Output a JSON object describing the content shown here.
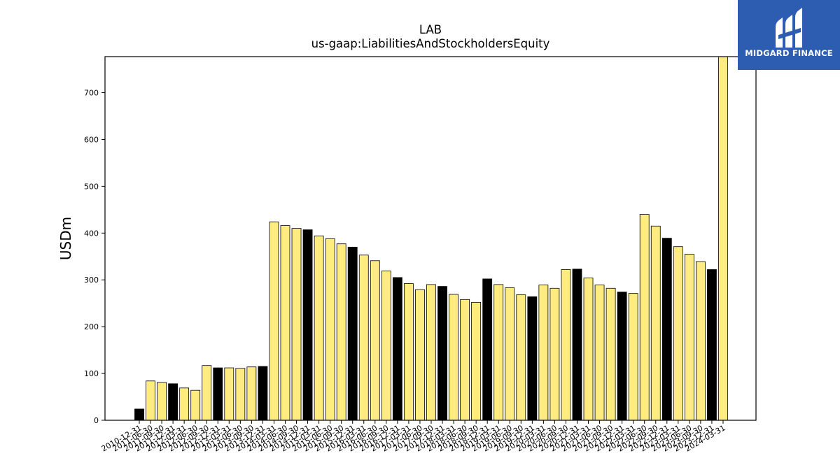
{
  "chart_data": {
    "type": "bar",
    "title": "LAB",
    "subtitle": "us-gaap:LiabilitiesAndStockholdersEquity",
    "xlabel": "",
    "ylabel": "USDm",
    "ylim": [
      0,
      777
    ],
    "yticks": [
      0,
      100,
      200,
      300,
      400,
      500,
      600,
      700
    ],
    "colors": {
      "annual": "#000000",
      "quarterly": "#ffec80",
      "edge": "#000000"
    },
    "categories": [
      "2010-12-31",
      "2011-06-30",
      "2011-09-30",
      "2011-12-31",
      "2012-03-31",
      "2012-06-30",
      "2012-09-30",
      "2012-12-31",
      "2013-03-31",
      "2013-06-30",
      "2013-09-30",
      "2013-12-31",
      "2014-03-31",
      "2014-06-30",
      "2014-09-30",
      "2014-12-31",
      "2015-03-31",
      "2015-06-30",
      "2015-09-30",
      "2015-12-31",
      "2016-03-31",
      "2016-06-30",
      "2016-09-30",
      "2016-12-31",
      "2017-03-31",
      "2017-06-30",
      "2017-09-30",
      "2017-12-31",
      "2018-03-31",
      "2018-06-30",
      "2018-09-30",
      "2018-12-31",
      "2019-03-31",
      "2019-06-30",
      "2019-09-30",
      "2019-12-31",
      "2020-03-31",
      "2020-06-30",
      "2020-09-30",
      "2020-12-31",
      "2021-03-31",
      "2021-06-30",
      "2021-09-30",
      "2021-12-31",
      "2022-03-31",
      "2022-06-30",
      "2022-09-30",
      "2022-12-31",
      "2023-03-31",
      "2023-06-30",
      "2023-09-30",
      "2023-12-31",
      "2024-03-31"
    ],
    "values": [
      24,
      84,
      81,
      78,
      69,
      64,
      117,
      112,
      112,
      111,
      114,
      115,
      424,
      416,
      410,
      407,
      394,
      388,
      377,
      370,
      353,
      341,
      319,
      305,
      292,
      279,
      290,
      286,
      269,
      258,
      252,
      302,
      290,
      283,
      268,
      264,
      289,
      282,
      322,
      323,
      304,
      289,
      282,
      274,
      271,
      440,
      415,
      389,
      371,
      355,
      339,
      322,
      777
    ],
    "bar_type": [
      "annual",
      "quarterly",
      "quarterly",
      "annual",
      "quarterly",
      "quarterly",
      "quarterly",
      "annual",
      "quarterly",
      "quarterly",
      "quarterly",
      "annual",
      "quarterly",
      "quarterly",
      "quarterly",
      "annual",
      "quarterly",
      "quarterly",
      "quarterly",
      "annual",
      "quarterly",
      "quarterly",
      "quarterly",
      "annual",
      "quarterly",
      "quarterly",
      "quarterly",
      "annual",
      "quarterly",
      "quarterly",
      "quarterly",
      "annual",
      "quarterly",
      "quarterly",
      "quarterly",
      "annual",
      "quarterly",
      "quarterly",
      "quarterly",
      "annual",
      "quarterly",
      "quarterly",
      "quarterly",
      "annual",
      "quarterly",
      "quarterly",
      "quarterly",
      "annual",
      "quarterly",
      "quarterly",
      "quarterly",
      "annual",
      "quarterly"
    ]
  },
  "logo": {
    "text": "MIDGARD FINANCE",
    "color": "#2c5db0"
  }
}
